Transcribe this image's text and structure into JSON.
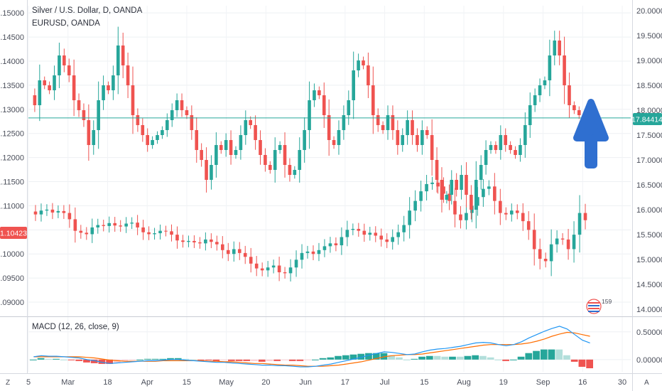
{
  "legend": {
    "main": "Silver / U.S. Dollar, D, OANDA",
    "compare": "EURUSD, OANDA",
    "macd": "MACD (12, 26, close, 9)"
  },
  "badges": {
    "left_price": "1.10423",
    "right_price": "17.84414",
    "event_count": "159"
  },
  "bottom_buttons": {
    "left": "Z",
    "right": "A"
  },
  "colors": {
    "up": "#26a69a",
    "down": "#ef5350",
    "macd_line": "#2196f3",
    "signal_line": "#ff6d00",
    "price_line": "#26a69a",
    "arrow": "#2f6fd0",
    "left_badge": "#ef5350",
    "right_badge": "#26a69a"
  },
  "chart_data": {
    "type": "candlestick",
    "x_ticks": [
      "5",
      "Mar",
      "18",
      "Apr",
      "15",
      "May",
      "20",
      "Jun",
      "17",
      "Jul",
      "15",
      "Aug",
      "19",
      "Sep",
      "16",
      "30"
    ],
    "left_axis": {
      "ticks": [
        "1.15000",
        "1.14500",
        "1.14000",
        "1.13500",
        "1.13000",
        "1.12500",
        "1.12000",
        "1.11500",
        "1.11000",
        "1.10500",
        "1.10000",
        "1.09500",
        "1.09000"
      ],
      "ylim": [
        1.0875,
        1.1515
      ]
    },
    "right_axis": {
      "ticks": [
        "20.00000",
        "19.50000",
        "19.00000",
        "18.50000",
        "18.00000",
        "17.50000",
        "17.00000",
        "16.50000",
        "16.00000",
        "15.50000",
        "15.00000",
        "14.50000",
        "14.00000"
      ],
      "ylim": [
        13.9,
        20.1
      ]
    },
    "macd_axis": {
      "ticks": [
        "0.50000",
        "0.00000"
      ],
      "ylim": [
        -0.22,
        0.74
      ]
    },
    "silver": [
      18.3,
      18.1,
      18.6,
      18.5,
      18.4,
      18.7,
      19.1,
      18.9,
      18.7,
      18.2,
      18.0,
      17.8,
      17.3,
      17.6,
      18.2,
      18.5,
      18.4,
      18.7,
      19.3,
      18.9,
      18.5,
      17.9,
      17.7,
      17.5,
      17.3,
      17.4,
      17.5,
      17.6,
      17.8,
      18.0,
      18.2,
      18.0,
      17.9,
      17.6,
      17.2,
      17.0,
      16.6,
      16.9,
      17.3,
      17.2,
      17.4,
      17.1,
      17.2,
      17.5,
      17.8,
      17.7,
      17.4,
      17.1,
      16.9,
      16.8,
      17.2,
      17.3,
      16.9,
      16.7,
      16.8,
      17.2,
      17.6,
      18.2,
      18.4,
      18.3,
      17.9,
      17.4,
      17.3,
      17.6,
      17.9,
      18.2,
      18.8,
      19.0,
      18.9,
      18.5,
      17.9,
      17.7,
      17.6,
      17.9,
      17.6,
      17.3,
      17.5,
      17.8,
      17.5,
      17.3,
      17.6,
      17.5,
      17.0,
      16.6,
      16.2,
      16.3,
      16.6,
      16.4,
      16.7,
      16.3,
      16.0,
      16.6,
      16.9,
      17.2,
      17.3,
      17.2,
      17.5,
      17.3,
      17.2,
      17.1,
      17.3,
      17.7,
      18.1,
      18.3,
      18.5,
      18.6,
      19.1,
      19.4,
      19.1,
      18.5,
      18.1,
      18.0,
      17.9,
      17.8,
      17.6
    ],
    "eurusd": [
      1.1088,
      1.1082,
      1.109,
      1.1092,
      1.1086,
      1.1089,
      1.1085,
      1.1072,
      1.1048,
      1.1044,
      1.1041,
      1.1055,
      1.106,
      1.1058,
      1.1064,
      1.1059,
      1.1057,
      1.1063,
      1.1065,
      1.1055,
      1.1045,
      1.1041,
      1.1043,
      1.1048,
      1.1047,
      1.104,
      1.1028,
      1.1025,
      1.1027,
      1.1024,
      1.1022,
      1.103,
      1.1025,
      1.102,
      1.1008,
      1.1,
      1.101,
      1.1002,
      1.0994,
      1.098,
      1.097,
      1.0966,
      1.0972,
      1.0976,
      1.0962,
      1.096,
      1.0972,
      1.0988,
      1.1002,
      1.1005,
      1.1,
      1.1008,
      1.1016,
      1.1022,
      1.1018,
      1.1035,
      1.105,
      1.1052,
      1.1048,
      1.104,
      1.1044,
      1.1038,
      1.103,
      1.1025,
      1.1035,
      1.1045,
      1.106,
      1.109,
      1.111,
      1.113,
      1.1145,
      1.1148,
      1.114,
      1.1125,
      1.111,
      1.1082,
      1.107,
      1.1085,
      1.11,
      1.1118,
      1.1135,
      1.114,
      1.111,
      1.1085,
      1.1082,
      1.109,
      1.1085,
      1.1068,
      1.105,
      1.101,
      1.099,
      1.0985,
      1.102,
      1.1032,
      1.103,
      1.101,
      1.104,
      1.1085,
      1.107
    ],
    "macd": [
      0.05,
      0.07,
      0.06,
      0.06,
      0.05,
      0.04,
      0.03,
      0.0,
      -0.02,
      -0.05,
      -0.07,
      -0.06,
      -0.05,
      -0.04,
      -0.03,
      -0.02,
      -0.02,
      -0.01,
      0.0,
      0.0,
      -0.01,
      -0.02,
      -0.03,
      -0.04,
      -0.05,
      -0.05,
      -0.06,
      -0.07,
      -0.08,
      -0.09,
      -0.1,
      -0.1,
      -0.11,
      -0.11,
      -0.12,
      -0.13,
      -0.13,
      -0.12,
      -0.1,
      -0.08,
      -0.05,
      -0.02,
      0.01,
      0.04,
      0.08,
      0.11,
      0.14,
      0.13,
      0.11,
      0.09,
      0.1,
      0.14,
      0.17,
      0.19,
      0.2,
      0.22,
      0.24,
      0.27,
      0.3,
      0.31,
      0.3,
      0.27,
      0.25,
      0.27,
      0.32,
      0.39,
      0.45,
      0.51,
      0.56,
      0.6,
      0.55,
      0.45,
      0.35,
      0.3
    ],
    "signal": [
      0.05,
      0.05,
      0.05,
      0.05,
      0.05,
      0.05,
      0.05,
      0.04,
      0.03,
      0.01,
      -0.01,
      -0.02,
      -0.03,
      -0.03,
      -0.03,
      -0.03,
      -0.03,
      -0.02,
      -0.02,
      -0.02,
      -0.02,
      -0.02,
      -0.02,
      -0.03,
      -0.03,
      -0.04,
      -0.04,
      -0.05,
      -0.06,
      -0.07,
      -0.07,
      -0.08,
      -0.09,
      -0.1,
      -0.1,
      -0.11,
      -0.12,
      -0.12,
      -0.12,
      -0.11,
      -0.1,
      -0.08,
      -0.06,
      -0.04,
      -0.01,
      0.02,
      0.05,
      0.07,
      0.08,
      0.09,
      0.09,
      0.1,
      0.12,
      0.14,
      0.16,
      0.18,
      0.2,
      0.22,
      0.24,
      0.26,
      0.27,
      0.27,
      0.27,
      0.27,
      0.28,
      0.3,
      0.33,
      0.37,
      0.42,
      0.46,
      0.49,
      0.48,
      0.45,
      0.42
    ],
    "current_silver": 17.84414,
    "current_eurusd": 1.10423
  }
}
